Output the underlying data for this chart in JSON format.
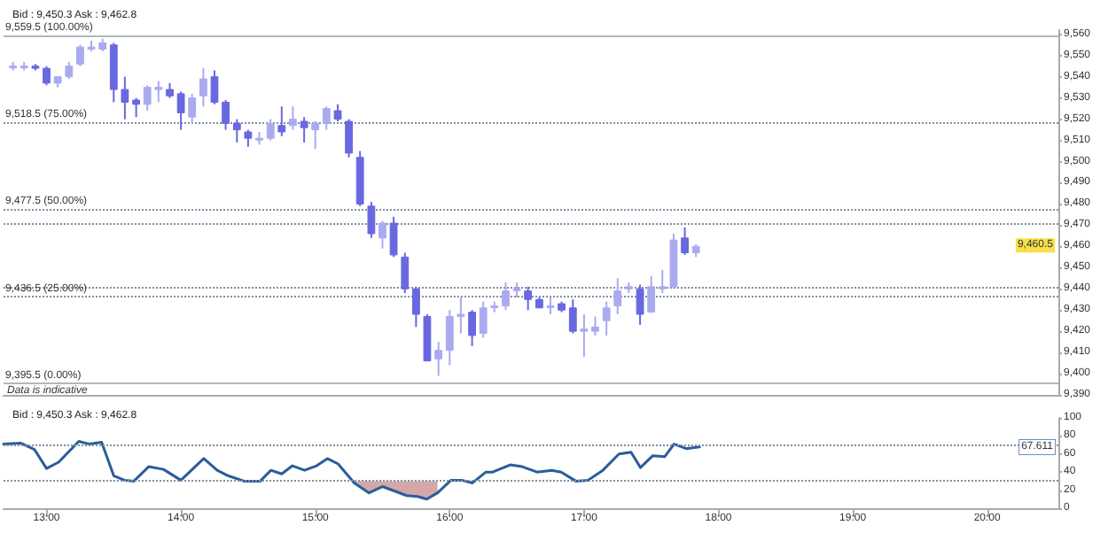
{
  "chart_data": [
    {
      "type": "candlestick",
      "title": "Bid : 9,450.3 Ask : 9,462.8",
      "x": [
        12.75,
        12.833,
        12.917,
        13,
        13.083,
        13.167,
        13.25,
        13.333,
        13.417,
        13.5,
        13.583,
        13.667,
        13.75,
        13.833,
        13.917,
        14,
        14.083,
        14.167,
        14.25,
        14.333,
        14.417,
        14.5,
        14.583,
        14.667,
        14.75,
        14.833,
        14.917,
        15,
        15.083,
        15.167,
        15.25,
        15.333,
        15.417,
        15.5,
        15.583,
        15.667,
        15.75,
        15.833,
        15.917,
        16,
        16.083,
        16.167,
        16.25,
        16.333,
        16.417,
        16.5,
        16.583,
        16.667,
        16.75,
        16.833,
        16.917,
        17,
        17.083,
        17.167,
        17.25,
        17.333,
        17.417,
        17.5,
        17.583,
        17.667,
        17.75,
        17.833
      ],
      "ohlc": [
        [
          9545,
          9547,
          9543,
          9545
        ],
        [
          9545,
          9547,
          9543,
          9545
        ],
        [
          9545,
          9546,
          9543,
          9544
        ],
        [
          9544,
          9545,
          9536,
          9537
        ],
        [
          9537,
          9540,
          9535,
          9540
        ],
        [
          9540,
          9547,
          9539,
          9545
        ],
        [
          9546,
          9555,
          9545,
          9554
        ],
        [
          9553,
          9557,
          9552,
          9554
        ],
        [
          9553,
          9558,
          9552,
          9556
        ],
        [
          9555,
          9556,
          9528,
          9534
        ],
        [
          9534,
          9540,
          9520,
          9528
        ],
        [
          9529,
          9530,
          9521,
          9527
        ],
        [
          9527,
          9536,
          9524,
          9535
        ],
        [
          9534,
          9538,
          9528,
          9535
        ],
        [
          9534,
          9537,
          9530,
          9531
        ],
        [
          9532,
          9533,
          9515,
          9523
        ],
        [
          9521,
          9532,
          9518,
          9530
        ],
        [
          9531,
          9544,
          9526,
          9539
        ],
        [
          9540,
          9543,
          9527,
          9528
        ],
        [
          9528,
          9529,
          9515,
          9518
        ],
        [
          9518,
          9520,
          9509,
          9515
        ],
        [
          9514,
          9515,
          9507,
          9511
        ],
        [
          9511,
          9514,
          9508,
          9511
        ],
        [
          9511,
          9520,
          9510,
          9518
        ],
        [
          9517,
          9526,
          9512,
          9514
        ],
        [
          9517,
          9526,
          9515,
          9520
        ],
        [
          9519,
          9521,
          9509,
          9516
        ],
        [
          9515,
          9519,
          9506,
          9518
        ],
        [
          9518,
          9526,
          9515,
          9525
        ],
        [
          9524,
          9527,
          9519,
          9520
        ],
        [
          9519,
          9520,
          9502,
          9504
        ],
        [
          9502,
          9505,
          9479,
          9480
        ],
        [
          9479,
          9481,
          9464,
          9466
        ],
        [
          9464,
          9472,
          9459,
          9471
        ],
        [
          9471,
          9474,
          9455,
          9456
        ],
        [
          9455,
          9457,
          9438,
          9440
        ],
        [
          9440,
          9441,
          9422,
          9428
        ],
        [
          9427,
          9428,
          9406,
          9406
        ],
        [
          9407,
          9415,
          9399,
          9411
        ],
        [
          9411,
          9430,
          9404,
          9427
        ],
        [
          9427,
          9436,
          9419,
          9428
        ],
        [
          9429,
          9430,
          9413,
          9418
        ],
        [
          9419,
          9434,
          9417,
          9431
        ],
        [
          9432,
          9434,
          9429,
          9432
        ],
        [
          9432,
          9443,
          9430,
          9439
        ],
        [
          9440,
          9443,
          9436,
          9440
        ],
        [
          9439,
          9441,
          9430,
          9435
        ],
        [
          9435,
          9436,
          9431,
          9431
        ],
        [
          9432,
          9436,
          9428,
          9432
        ],
        [
          9433,
          9434,
          9429,
          9430
        ],
        [
          9431,
          9435,
          9419,
          9420
        ],
        [
          9420,
          9428,
          9408,
          9421
        ],
        [
          9420,
          9427,
          9418,
          9422
        ],
        [
          9425,
          9434,
          9418,
          9431
        ],
        [
          9432,
          9445,
          9428,
          9439
        ],
        [
          9440,
          9443,
          9438,
          9441
        ],
        [
          9440,
          9442,
          9423,
          9428
        ],
        [
          9429,
          9446,
          9429,
          9441
        ],
        [
          9440,
          9449,
          9438,
          9441
        ],
        [
          9441,
          9466,
          9440,
          9463
        ],
        [
          9464,
          9469,
          9456,
          9457
        ],
        [
          9457,
          9461,
          9455,
          9460
        ]
      ],
      "colors": [
        "#aaaaf0",
        "#aaaaf0",
        "#6868e0",
        "#6868e0",
        "#aaaaf0",
        "#aaaaf0",
        "#aaaaf0",
        "#aaaaf0",
        "#aaaaf0",
        "#6868e0",
        "#6868e0",
        "#6868e0",
        "#aaaaf0",
        "#aaaaf0",
        "#6868e0",
        "#6868e0",
        "#aaaaf0",
        "#aaaaf0",
        "#6868e0",
        "#6868e0",
        "#6868e0",
        "#6868e0",
        "#aaaaf0",
        "#aaaaf0",
        "#6868e0",
        "#aaaaf0",
        "#6868e0",
        "#aaaaf0",
        "#aaaaf0",
        "#6868e0",
        "#6868e0",
        "#6868e0",
        "#6868e0",
        "#aaaaf0",
        "#6868e0",
        "#6868e0",
        "#6868e0",
        "#6868e0",
        "#aaaaf0",
        "#aaaaf0",
        "#aaaaf0",
        "#6868e0",
        "#aaaaf0",
        "#aaaaf0",
        "#aaaaf0",
        "#aaaaf0",
        "#6868e0",
        "#6868e0",
        "#aaaaf0",
        "#6868e0",
        "#6868e0",
        "#aaaaf0",
        "#aaaaf0",
        "#aaaaf0",
        "#aaaaf0",
        "#aaaaf0",
        "#6868e0",
        "#aaaaf0",
        "#aaaaf0",
        "#aaaaf0",
        "#6868e0",
        "#aaaaf0"
      ],
      "xlim": [
        12.68,
        20.53
      ],
      "ylim": [
        9390,
        9562
      ],
      "yticks": [
        {
          "value": 9390,
          "label": "9,390"
        },
        {
          "value": 9400,
          "label": "9,400"
        },
        {
          "value": 9410,
          "label": "9,410"
        },
        {
          "value": 9420,
          "label": "9,420"
        },
        {
          "value": 9430,
          "label": "9,430"
        },
        {
          "value": 9440,
          "label": "9,440"
        },
        {
          "value": 9450,
          "label": "9,450"
        },
        {
          "value": 9460,
          "label": "9,460"
        },
        {
          "value": 9470,
          "label": "9,470"
        },
        {
          "value": 9480,
          "label": "9,480"
        },
        {
          "value": 9490,
          "label": "9,490"
        },
        {
          "value": 9500,
          "label": "9,500"
        },
        {
          "value": 9510,
          "label": "9,510"
        },
        {
          "value": 9520,
          "label": "9,520"
        },
        {
          "value": 9530,
          "label": "9,530"
        },
        {
          "value": 9540,
          "label": "9,540"
        },
        {
          "value": 9550,
          "label": "9,550"
        },
        {
          "value": 9560,
          "label": "9,560"
        }
      ],
      "tick_labels": "y",
      "grid": false,
      "ref_lines": [
        {
          "axis": "y",
          "value": 9559.5,
          "label": "9,559.5 (100.00%)",
          "line_style": "solid",
          "color": "#b0b8c0"
        },
        {
          "axis": "y",
          "value": 9518.5,
          "label": "9,518.5 (75.00%)",
          "line_style": "dotted",
          "color": "#8090a0"
        },
        {
          "axis": "y",
          "value": 9477.5,
          "label": "9,477.5 (50.00%)",
          "line_style": "dotted",
          "color": "#8090a0"
        },
        {
          "axis": "y",
          "value": 9471,
          "line_style": "dotted",
          "color": "#8090a0"
        },
        {
          "axis": "y",
          "value": 9441,
          "line_style": "dotted",
          "color": "#8090a0"
        },
        {
          "axis": "y",
          "value": 9436.5,
          "label": "9,436.5 (25.00%)",
          "line_style": "dotted",
          "color": "#8090a0"
        },
        {
          "axis": "y",
          "value": 9395.5,
          "label": "9,395.5 (0.00%)",
          "line_style": "solid",
          "color": "#b0b8c0"
        }
      ],
      "annotations": [
        {
          "text": "9,460.5",
          "y": 9460.5
        },
        "Data is indicative"
      ]
    },
    {
      "type": "line",
      "title": "Bid : 9,450.3 Ask : 9,462.8",
      "series": [
        {
          "color": "#2a5d9a",
          "x": [
            12.68,
            12.81,
            12.91,
            13.0,
            13.09,
            13.24,
            13.32,
            13.41,
            13.5,
            13.58,
            13.65,
            13.76,
            13.87,
            14.0,
            14.17,
            14.27,
            14.35,
            14.47,
            14.59,
            14.67,
            14.75,
            14.83,
            14.92,
            15.01,
            15.09,
            15.17,
            15.29,
            15.4,
            15.5,
            15.68,
            15.76,
            15.83,
            15.91,
            16.01,
            16.09,
            16.17,
            16.27,
            16.32,
            16.45,
            16.54,
            16.65,
            16.76,
            16.83,
            16.94,
            17.03,
            17.14,
            17.26,
            17.35,
            17.42,
            17.51,
            17.6,
            17.67,
            17.76,
            17.86
          ],
          "values": [
            71,
            72,
            65,
            44,
            51,
            74,
            71,
            73,
            36,
            31,
            30,
            46,
            43,
            31,
            55,
            42,
            36,
            30,
            30,
            42,
            38,
            47,
            42,
            47,
            55,
            49,
            28,
            17,
            24,
            14,
            13,
            10,
            17,
            31,
            31,
            28,
            40,
            40,
            48,
            46,
            40,
            42,
            40,
            30,
            31,
            42,
            60,
            62,
            45,
            58,
            57,
            71,
            66,
            68
          ],
          "lower": [
            null,
            null,
            null,
            null,
            null,
            null,
            null,
            null,
            null,
            null,
            null,
            null,
            null,
            null,
            null,
            null,
            null,
            null,
            null,
            null,
            null,
            null,
            null,
            null,
            null,
            null,
            28,
            17,
            24,
            14,
            13,
            10,
            17,
            null,
            null,
            null,
            null,
            null,
            null,
            null,
            null,
            null,
            null,
            null,
            null,
            null,
            null,
            null,
            null,
            null,
            null,
            null,
            null,
            null
          ],
          "upper": [
            null,
            null,
            null,
            null,
            null,
            null,
            null,
            null,
            null,
            null,
            null,
            null,
            null,
            null,
            null,
            null,
            null,
            null,
            null,
            null,
            null,
            null,
            null,
            null,
            null,
            null,
            30,
            30,
            30,
            30,
            30,
            30,
            30,
            null,
            null,
            null,
            null,
            null,
            null,
            null,
            null,
            null,
            null,
            null,
            null,
            null,
            null,
            null,
            null,
            null,
            null,
            null,
            null,
            null
          ]
        }
      ],
      "marker": "none",
      "line_style": "solid",
      "xlim": [
        12.68,
        20.53
      ],
      "ylim": [
        0,
        100
      ],
      "xticks": [
        {
          "value": 13,
          "label": "13:00"
        },
        {
          "value": 14,
          "label": "14:00"
        },
        {
          "value": 15,
          "label": "15:00"
        },
        {
          "value": 16,
          "label": "16:00"
        },
        {
          "value": 17,
          "label": "17:00"
        },
        {
          "value": 18,
          "label": "18:00"
        },
        {
          "value": 19,
          "label": "19:00"
        },
        {
          "value": 20,
          "label": "20:00"
        }
      ],
      "yticks": [
        0,
        20,
        40,
        60,
        80,
        100
      ],
      "grid": false,
      "ref_lines": [
        {
          "axis": "y",
          "value": 70,
          "line_style": "dotted",
          "color": "#8090a0"
        },
        {
          "axis": "y",
          "value": 30,
          "line_style": "dotted",
          "color": "#8090a0"
        }
      ],
      "annotations": [
        {
          "text": "67.611",
          "y": 67.611
        }
      ]
    }
  ]
}
